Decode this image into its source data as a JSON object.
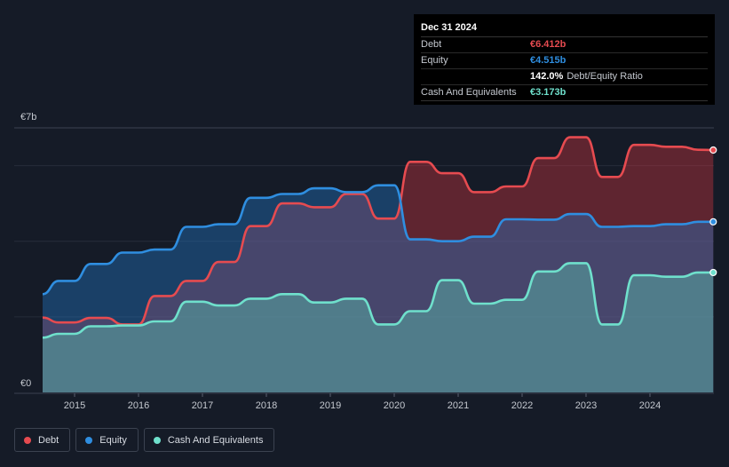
{
  "tooltip": {
    "date": "Dec 31 2024",
    "debt_label": "Debt",
    "debt_value": "€6.412b",
    "equity_label": "Equity",
    "equity_value": "€4.515b",
    "ratio_value": "142.0%",
    "ratio_label": "Debt/Equity Ratio",
    "cash_label": "Cash And Equivalents",
    "cash_value": "€3.173b"
  },
  "legend": {
    "debt": "Debt",
    "equity": "Equity",
    "cash": "Cash And Equivalents"
  },
  "colors": {
    "debt": "#e64b50",
    "equity": "#2f8ee0",
    "cash": "#6fe0cc",
    "background": "#151b27"
  },
  "chart_data": {
    "type": "area",
    "ylabels": [
      "€7b",
      "€0"
    ],
    "ylim": [
      0,
      7
    ],
    "xlim": [
      2014.5,
      2025.0
    ],
    "xticks": [
      2015,
      2016,
      2017,
      2018,
      2019,
      2020,
      2021,
      2022,
      2023,
      2024
    ],
    "xtick_labels": [
      "2015",
      "2016",
      "2017",
      "2018",
      "2019",
      "2020",
      "2021",
      "2022",
      "2023",
      "2024"
    ],
    "series": [
      {
        "name": "Debt",
        "key": "debt",
        "x": [
          2014.5,
          2014.75,
          2015.0,
          2015.25,
          2015.5,
          2015.75,
          2016.0,
          2016.25,
          2016.5,
          2016.75,
          2017.0,
          2017.25,
          2017.5,
          2017.75,
          2018.0,
          2018.25,
          2018.5,
          2018.75,
          2019.0,
          2019.25,
          2019.5,
          2019.75,
          2020.0,
          2020.25,
          2020.5,
          2020.75,
          2021.0,
          2021.25,
          2021.5,
          2021.75,
          2022.0,
          2022.25,
          2022.5,
          2022.75,
          2023.0,
          2023.25,
          2023.5,
          2023.75,
          2024.0,
          2024.25,
          2024.5,
          2024.75,
          2024.99
        ],
        "values": [
          1.98,
          1.85,
          1.85,
          1.97,
          1.97,
          1.8,
          1.8,
          2.55,
          2.55,
          2.95,
          2.95,
          3.45,
          3.45,
          4.4,
          4.4,
          5.0,
          5.0,
          4.9,
          4.9,
          5.25,
          5.25,
          4.6,
          4.6,
          6.1,
          6.1,
          5.8,
          5.8,
          5.3,
          5.3,
          5.45,
          5.45,
          6.2,
          6.2,
          6.75,
          6.75,
          5.7,
          5.7,
          6.55,
          6.55,
          6.5,
          6.5,
          6.42,
          6.412
        ]
      },
      {
        "name": "Equity",
        "key": "equity",
        "x": [
          2014.5,
          2014.75,
          2015.0,
          2015.25,
          2015.5,
          2015.75,
          2016.0,
          2016.25,
          2016.5,
          2016.75,
          2017.0,
          2017.25,
          2017.5,
          2017.75,
          2018.0,
          2018.25,
          2018.5,
          2018.75,
          2019.0,
          2019.25,
          2019.5,
          2019.75,
          2020.0,
          2020.25,
          2020.5,
          2020.75,
          2021.0,
          2021.25,
          2021.5,
          2021.75,
          2022.0,
          2022.25,
          2022.5,
          2022.75,
          2023.0,
          2023.25,
          2023.5,
          2023.75,
          2024.0,
          2024.25,
          2024.5,
          2024.75,
          2024.99
        ],
        "values": [
          2.6,
          2.95,
          2.95,
          3.4,
          3.4,
          3.7,
          3.7,
          3.78,
          3.78,
          4.38,
          4.38,
          4.45,
          4.45,
          5.15,
          5.15,
          5.25,
          5.25,
          5.4,
          5.4,
          5.3,
          5.3,
          5.48,
          5.48,
          4.05,
          4.05,
          4.0,
          4.0,
          4.12,
          4.12,
          4.58,
          4.58,
          4.57,
          4.57,
          4.72,
          4.72,
          4.38,
          4.38,
          4.4,
          4.4,
          4.45,
          4.45,
          4.515,
          4.515
        ]
      },
      {
        "name": "Cash And Equivalents",
        "key": "cash",
        "x": [
          2014.5,
          2014.75,
          2015.0,
          2015.25,
          2015.5,
          2015.75,
          2016.0,
          2016.25,
          2016.5,
          2016.75,
          2017.0,
          2017.25,
          2017.5,
          2017.75,
          2018.0,
          2018.25,
          2018.5,
          2018.75,
          2019.0,
          2019.25,
          2019.5,
          2019.75,
          2020.0,
          2020.25,
          2020.5,
          2020.75,
          2021.0,
          2021.25,
          2021.5,
          2021.75,
          2022.0,
          2022.25,
          2022.5,
          2022.75,
          2023.0,
          2023.25,
          2023.5,
          2023.75,
          2024.0,
          2024.25,
          2024.5,
          2024.75,
          2024.99
        ],
        "values": [
          1.45,
          1.55,
          1.55,
          1.75,
          1.75,
          1.77,
          1.77,
          1.88,
          1.88,
          2.4,
          2.4,
          2.3,
          2.3,
          2.48,
          2.48,
          2.6,
          2.6,
          2.38,
          2.38,
          2.48,
          2.48,
          1.8,
          1.8,
          2.15,
          2.15,
          2.97,
          2.97,
          2.35,
          2.35,
          2.45,
          2.45,
          3.2,
          3.2,
          3.42,
          3.42,
          1.8,
          1.8,
          3.1,
          3.1,
          3.06,
          3.06,
          3.173,
          3.173
        ]
      }
    ]
  }
}
